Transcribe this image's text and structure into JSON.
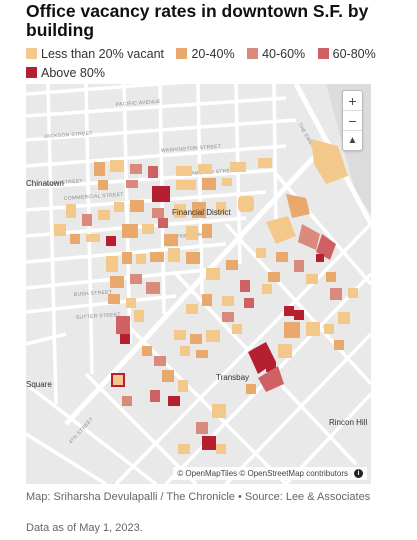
{
  "title": "Office vacancy rates in downtown S.F. by building",
  "legend": [
    {
      "label": "Less than 20% vacant",
      "color": "#f3c98b"
    },
    {
      "label": "20-40%",
      "color": "#e9a86c"
    },
    {
      "label": "40-60%",
      "color": "#d98a7c"
    },
    {
      "label": "60-80%",
      "color": "#cf6165"
    },
    {
      "label": "Above 80%",
      "color": "#b51f2f"
    }
  ],
  "map": {
    "places": {
      "chinatown": "Chinatown",
      "financial": "Financial District",
      "transbay": "Transbay",
      "rincon": "Rincon Hill",
      "square": "Square"
    },
    "streets": {
      "pacific": "PACIFIC AVENUE",
      "jackson": "JACKSON STREET",
      "washington": "WASHINGTON STREET",
      "clay": "CLAY STREET",
      "commercial": "COMMERCIAL STREET",
      "sacramento": "SACRAMENTO STREET",
      "pine": "PINE STREET",
      "bush": "BUSH STREET",
      "sutter": "SUTTER STREET",
      "embarcadero": "THE EMBARCADERO",
      "fourth": "4TH STREET"
    },
    "zoom": {
      "in": "+",
      "out": "−",
      "north": "▲"
    },
    "attribution": "© OpenMapTiles © OpenStreetMap contributors",
    "info_icon": "i"
  },
  "credit": "Map: Sriharsha Devulapalli / The Chronicle • Source: Lee & Associates",
  "as_of": "Data as of May 1, 2023."
}
